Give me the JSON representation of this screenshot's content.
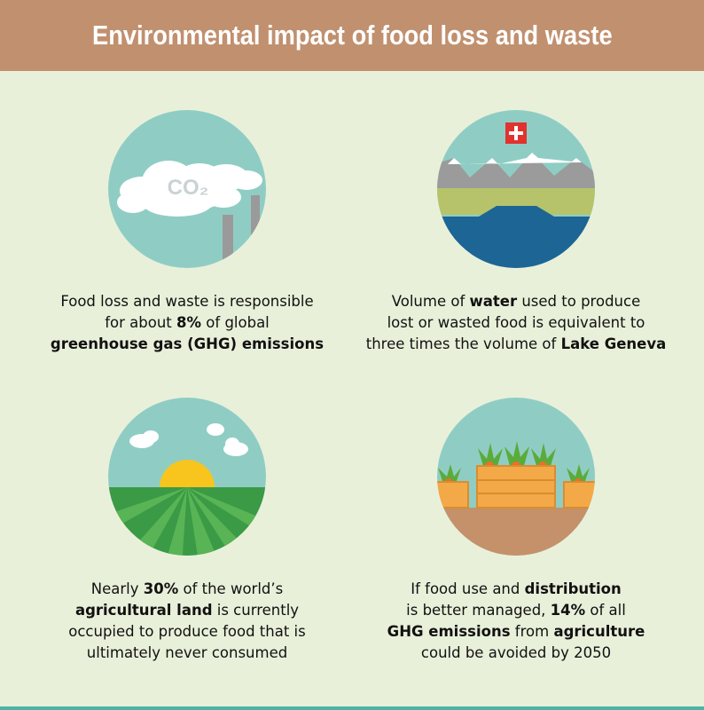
{
  "header": {
    "title": "Environmental impact of food loss and waste"
  },
  "icons": [
    {
      "label": "CO₂"
    }
  ],
  "items": [
    {
      "lines": [
        [
          {
            "text": "Food loss and waste is responsible",
            "bold": false
          }
        ],
        [
          {
            "text": "for about ",
            "bold": false
          },
          {
            "text": "8%",
            "bold": true
          },
          {
            "text": " of global",
            "bold": false
          }
        ],
        [
          {
            "text": "greenhouse gas (GHG) emissions",
            "bold": true
          }
        ]
      ]
    },
    {
      "lines": [
        [
          {
            "text": "Volume of ",
            "bold": false
          },
          {
            "text": "water",
            "bold": true
          },
          {
            "text": " used to produce",
            "bold": false
          }
        ],
        [
          {
            "text": "lost or wasted food is equivalent to",
            "bold": false
          }
        ],
        [
          {
            "text": "three times the volume of ",
            "bold": false
          },
          {
            "text": "Lake Geneva",
            "bold": true
          }
        ]
      ]
    },
    {
      "lines": [
        [
          {
            "text": "Nearly ",
            "bold": false
          },
          {
            "text": "30%",
            "bold": true
          },
          {
            "text": " of the world’s",
            "bold": false
          }
        ],
        [
          {
            "text": "agricultural land",
            "bold": true
          },
          {
            "text": " is currently",
            "bold": false
          }
        ],
        [
          {
            "text": "occupied to produce food that is",
            "bold": false
          }
        ],
        [
          {
            "text": "ultimately never consumed",
            "bold": false
          }
        ]
      ]
    },
    {
      "lines": [
        [
          {
            "text": "If food use and ",
            "bold": false
          },
          {
            "text": "distribution",
            "bold": true
          }
        ],
        [
          {
            "text": "is better managed, ",
            "bold": false
          },
          {
            "text": "14%",
            "bold": true
          },
          {
            "text": " of all",
            "bold": false
          }
        ],
        [
          {
            "text": "GHG emissions",
            "bold": true
          },
          {
            "text": " from ",
            "bold": false
          },
          {
            "text": "agriculture",
            "bold": true
          }
        ],
        [
          {
            "text": "could be avoided by 2050",
            "bold": false
          }
        ]
      ]
    }
  ]
}
